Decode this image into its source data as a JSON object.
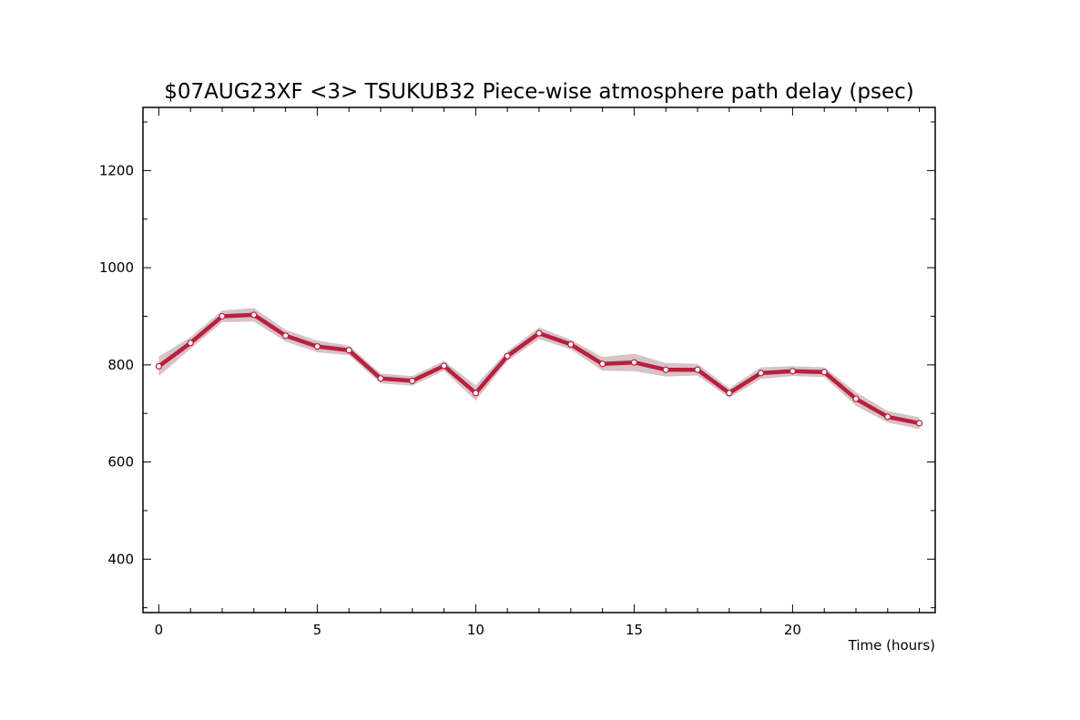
{
  "chart_data": {
    "type": "line",
    "title": "$07AUG23XF <3>  TSUKUB32  Piece-wise atmosphere path delay (psec)",
    "xlabel": "Time (hours)",
    "ylabel": "",
    "xlim": [
      -0.5,
      24.5
    ],
    "ylim": [
      290,
      1330
    ],
    "x_ticks": [
      0,
      5,
      10,
      15,
      20
    ],
    "x_tick_labels": [
      "0",
      "5",
      "10",
      "15",
      "20"
    ],
    "x_minor_ticks": [
      0,
      1,
      2,
      3,
      4,
      5,
      6,
      7,
      8,
      9,
      10,
      11,
      12,
      13,
      14,
      15,
      16,
      17,
      18,
      19,
      20,
      21,
      22,
      23,
      24
    ],
    "y_ticks": [
      400,
      600,
      800,
      1000,
      1200
    ],
    "y_tick_labels": [
      "400",
      "600",
      "800",
      "1000",
      "1200"
    ],
    "y_minor_ticks": [
      300,
      400,
      500,
      600,
      700,
      800,
      900,
      1000,
      1100,
      1200,
      1300
    ],
    "grid": false,
    "legend": "none",
    "series": [
      {
        "x": [
          0,
          1,
          2,
          3,
          4,
          5,
          6,
          7,
          8,
          9,
          10,
          11,
          12,
          13,
          14,
          15,
          16,
          17,
          18,
          19,
          20,
          21,
          22,
          23,
          24
        ],
        "values": [
          797,
          845,
          900,
          903,
          860,
          838,
          830,
          772,
          767,
          798,
          742,
          818,
          865,
          842,
          802,
          805,
          790,
          790,
          742,
          783,
          787,
          785,
          730,
          693,
          680
        ],
        "error": [
          20,
          12,
          12,
          14,
          12,
          12,
          10,
          10,
          10,
          10,
          16,
          10,
          12,
          10,
          14,
          18,
          14,
          12,
          10,
          12,
          10,
          10,
          14,
          12,
          12
        ],
        "line_color": "#b8203e",
        "band_color": "#d7c2c6",
        "marker_fill": "#ffffff"
      }
    ]
  }
}
